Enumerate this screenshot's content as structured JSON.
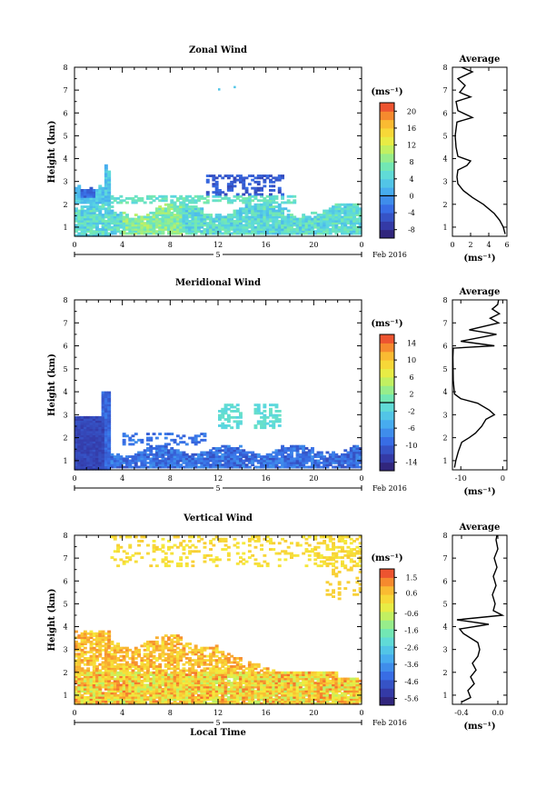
{
  "chart_data": [
    {
      "type": "heatmap",
      "title": "Zonal Wind",
      "ylabel": "Height (km)",
      "ylim": [
        0.6,
        8
      ],
      "yticks": [
        "1",
        "2",
        "3",
        "4",
        "5",
        "6",
        "7",
        "8"
      ],
      "xlim": [
        0,
        24
      ],
      "xticks": [
        "0",
        "4",
        "8",
        "12",
        "16",
        "20",
        "0"
      ],
      "date_label": "5",
      "date_suffix": "Feb 2016",
      "colorbar": {
        "unit": "(ms⁻¹)",
        "min": -10,
        "max": 22,
        "ticks": [
          "-8",
          "-4",
          "0",
          "4",
          "8",
          "12",
          "16",
          "20"
        ],
        "tick_values": [
          -8,
          -4,
          0,
          4,
          8,
          12,
          16,
          20
        ],
        "zero_line": 0
      },
      "field": {
        "low_layer": {
          "x": [
            0,
            24
          ],
          "height": [
            0.6,
            2.0
          ],
          "value": 5
        },
        "early_plume": {
          "x": [
            0,
            3
          ],
          "height": [
            1.0,
            3.9
          ],
          "value": 3
        },
        "negative_pockets": {
          "x": [
            [
              0.5,
              1.8
            ],
            [
              11,
              17.5
            ]
          ],
          "height": [
            2.3,
            3.4
          ],
          "value": -6
        },
        "isolated_points": [
          {
            "x": 12,
            "height": 7.0
          },
          {
            "x": 13.3,
            "height": 7.1
          }
        ]
      },
      "average": {
        "title": "Average",
        "xlabel": "(ms⁻¹)",
        "xlim": [
          0,
          6
        ],
        "xticks": [
          "0",
          "2",
          "4",
          "6"
        ],
        "ylim": [
          0.6,
          8
        ],
        "yticks": [
          "1",
          "2",
          "3",
          "4",
          "5",
          "6",
          "7",
          "8"
        ],
        "profile": [
          {
            "h": 0.7,
            "v": 5.8
          },
          {
            "h": 1.0,
            "v": 5.6
          },
          {
            "h": 1.3,
            "v": 5.2
          },
          {
            "h": 1.6,
            "v": 4.6
          },
          {
            "h": 2.0,
            "v": 3.4
          },
          {
            "h": 2.3,
            "v": 2.2
          },
          {
            "h": 2.6,
            "v": 1.2
          },
          {
            "h": 2.9,
            "v": 0.6
          },
          {
            "h": 3.2,
            "v": 0.5
          },
          {
            "h": 3.5,
            "v": 0.6
          },
          {
            "h": 3.7,
            "v": 1.6
          },
          {
            "h": 3.9,
            "v": 2.0
          },
          {
            "h": 4.1,
            "v": 0.6
          },
          {
            "h": 4.5,
            "v": 0.4
          },
          {
            "h": 5.0,
            "v": 0.3
          },
          {
            "h": 5.6,
            "v": 0.5
          },
          {
            "h": 5.8,
            "v": 2.2
          },
          {
            "h": 6.1,
            "v": 0.6
          },
          {
            "h": 6.5,
            "v": 0.4
          },
          {
            "h": 6.7,
            "v": 2.0
          },
          {
            "h": 6.9,
            "v": 0.8
          },
          {
            "h": 7.2,
            "v": 1.4
          },
          {
            "h": 7.5,
            "v": 0.6
          },
          {
            "h": 7.8,
            "v": 2.2
          },
          {
            "h": 8.0,
            "v": 1.0
          }
        ]
      }
    },
    {
      "type": "heatmap",
      "title": "Meridional Wind",
      "ylabel": "Height (km)",
      "ylim": [
        0.6,
        8
      ],
      "yticks": [
        "1",
        "2",
        "3",
        "4",
        "5",
        "6",
        "7",
        "8"
      ],
      "xlim": [
        0,
        24
      ],
      "xticks": [
        "0",
        "4",
        "8",
        "12",
        "16",
        "20",
        "0"
      ],
      "date_label": "5",
      "date_suffix": "Feb 2016",
      "colorbar": {
        "unit": "(ms⁻¹)",
        "min": -16,
        "max": 16,
        "ticks": [
          "-14",
          "-10",
          "-6",
          "-2",
          "2",
          "6",
          "10",
          "14"
        ],
        "tick_values": [
          -14,
          -10,
          -6,
          -2,
          2,
          6,
          10,
          14
        ],
        "zero_line": 0
      },
      "field": {
        "low_layer": {
          "x": [
            0,
            24
          ],
          "height": [
            0.6,
            1.7
          ],
          "value": -9
        },
        "early_plume": {
          "x": [
            0,
            3
          ],
          "height": [
            0.6,
            4.0
          ],
          "value": -13
        },
        "positive_pockets": {
          "x": [
            [
              12,
              14
            ],
            [
              15,
              17
            ]
          ],
          "height": [
            2.4,
            3.5
          ],
          "value": -1
        }
      },
      "average": {
        "title": "Average",
        "xlabel": "(ms⁻¹)",
        "xlim": [
          -12,
          1
        ],
        "xticks": [
          "-10",
          "0"
        ],
        "xtick_values": [
          -10,
          0
        ],
        "ylim": [
          0.6,
          8
        ],
        "yticks": [
          "1",
          "2",
          "3",
          "4",
          "5",
          "6",
          "7",
          "8"
        ],
        "profile": [
          {
            "h": 0.7,
            "v": -11.5
          },
          {
            "h": 1.0,
            "v": -11.2
          },
          {
            "h": 1.4,
            "v": -10.6
          },
          {
            "h": 1.8,
            "v": -9.8
          },
          {
            "h": 2.0,
            "v": -8.0
          },
          {
            "h": 2.2,
            "v": -6.5
          },
          {
            "h": 2.5,
            "v": -5.0
          },
          {
            "h": 2.8,
            "v": -4.0
          },
          {
            "h": 3.0,
            "v": -2.0
          },
          {
            "h": 3.2,
            "v": -3.2
          },
          {
            "h": 3.5,
            "v": -6.0
          },
          {
            "h": 3.7,
            "v": -10.0
          },
          {
            "h": 3.9,
            "v": -11.5
          },
          {
            "h": 4.5,
            "v": -11.8
          },
          {
            "h": 5.5,
            "v": -11.9
          },
          {
            "h": 5.9,
            "v": -11.8
          },
          {
            "h": 6.0,
            "v": -2.0
          },
          {
            "h": 6.2,
            "v": -10.0
          },
          {
            "h": 6.5,
            "v": -1.5
          },
          {
            "h": 6.7,
            "v": -8.0
          },
          {
            "h": 7.0,
            "v": -1.0
          },
          {
            "h": 7.2,
            "v": -3.0
          },
          {
            "h": 7.4,
            "v": -0.8
          },
          {
            "h": 7.6,
            "v": -2.5
          },
          {
            "h": 7.8,
            "v": -1.2
          },
          {
            "h": 8.0,
            "v": -1.0
          }
        ]
      }
    },
    {
      "type": "heatmap",
      "title": "Vertical Wind",
      "ylabel": "Height (km)",
      "xlabel": "Local Time",
      "ylim": [
        0.6,
        8
      ],
      "yticks": [
        "1",
        "2",
        "3",
        "4",
        "5",
        "6",
        "7",
        "8"
      ],
      "xlim": [
        0,
        24
      ],
      "xticks": [
        "0",
        "4",
        "8",
        "12",
        "16",
        "20",
        "0"
      ],
      "date_label": "5",
      "date_suffix": "Feb 2016",
      "colorbar": {
        "unit": "(ms⁻¹)",
        "min": -6,
        "max": 2,
        "ticks": [
          "-5.6",
          "-4.6",
          "-3.6",
          "-2.6",
          "-1.6",
          "-0.6",
          "0.6",
          "1.5"
        ],
        "tick_values": [
          -5.6,
          -4.6,
          -3.6,
          -2.6,
          -1.6,
          -0.6,
          0.6,
          1.5
        ]
      },
      "field": {
        "low_layer": {
          "x": [
            0,
            24
          ],
          "height": [
            0.6,
            2.0
          ],
          "value": 0.3
        },
        "mid_layer": {
          "x": [
            0,
            17
          ],
          "height": [
            2.0,
            3.8
          ],
          "value": 0.6
        },
        "upper_sparse": {
          "x": [
            3,
            24
          ],
          "height": [
            6.6,
            8.0
          ],
          "value": 0.2
        }
      },
      "average": {
        "title": "Average",
        "xlabel": "(ms⁻¹)",
        "xlim": [
          -0.5,
          0.1
        ],
        "xticks": [
          "-0.4",
          "0.0"
        ],
        "xtick_values": [
          -0.4,
          0.0
        ],
        "ylim": [
          0.6,
          8
        ],
        "yticks": [
          "1",
          "2",
          "3",
          "4",
          "5",
          "6",
          "7",
          "8"
        ],
        "profile": [
          {
            "h": 0.7,
            "v": -0.4
          },
          {
            "h": 0.9,
            "v": -0.3
          },
          {
            "h": 1.2,
            "v": -0.33
          },
          {
            "h": 1.5,
            "v": -0.26
          },
          {
            "h": 1.8,
            "v": -0.3
          },
          {
            "h": 2.1,
            "v": -0.24
          },
          {
            "h": 2.4,
            "v": -0.28
          },
          {
            "h": 2.7,
            "v": -0.22
          },
          {
            "h": 3.0,
            "v": -0.2
          },
          {
            "h": 3.3,
            "v": -0.22
          },
          {
            "h": 3.5,
            "v": -0.3
          },
          {
            "h": 3.7,
            "v": -0.38
          },
          {
            "h": 3.9,
            "v": -0.42
          },
          {
            "h": 4.1,
            "v": -0.1
          },
          {
            "h": 4.3,
            "v": -0.45
          },
          {
            "h": 4.5,
            "v": 0.05
          },
          {
            "h": 4.7,
            "v": -0.05
          },
          {
            "h": 5.0,
            "v": -0.03
          },
          {
            "h": 5.4,
            "v": -0.06
          },
          {
            "h": 5.8,
            "v": -0.02
          },
          {
            "h": 6.2,
            "v": -0.05
          },
          {
            "h": 6.6,
            "v": -0.01
          },
          {
            "h": 7.0,
            "v": -0.04
          },
          {
            "h": 7.4,
            "v": 0.0
          },
          {
            "h": 7.8,
            "v": -0.02
          },
          {
            "h": 8.0,
            "v": -0.01
          }
        ]
      }
    }
  ]
}
